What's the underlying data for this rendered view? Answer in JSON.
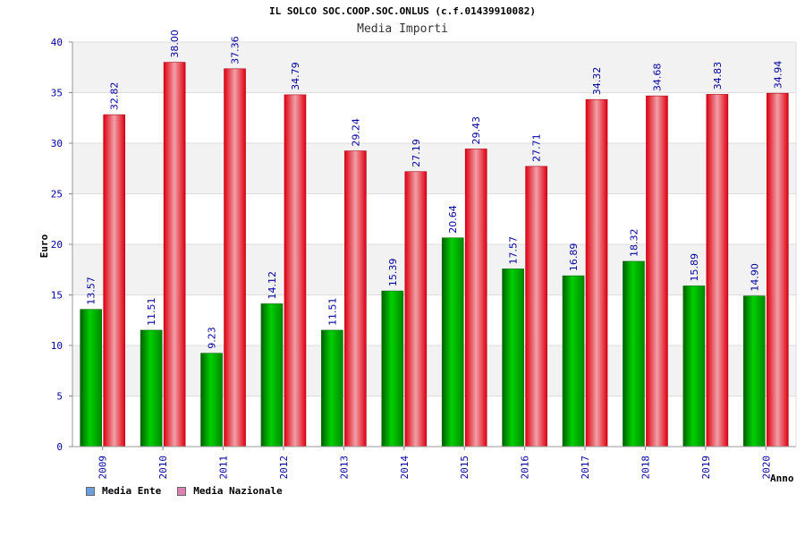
{
  "chart_data": {
    "type": "bar",
    "title": "IL SOLCO SOC.COOP.SOC.ONLUS (c.f.01439910082)",
    "subtitle": "Media Importi",
    "xlabel": "Anno",
    "ylabel": "Euro",
    "ylim": [
      0,
      40
    ],
    "yticks": [
      0,
      5,
      10,
      15,
      20,
      25,
      30,
      35,
      40
    ],
    "categories": [
      "2009",
      "2010",
      "2011",
      "2012",
      "2013",
      "2014",
      "2015",
      "2016",
      "2017",
      "2018",
      "2019",
      "2020"
    ],
    "series": [
      {
        "name": "Media Ente",
        "color": "#00a000",
        "legend_color": "#6aa0e0",
        "values": [
          13.57,
          11.51,
          9.23,
          14.12,
          11.51,
          15.39,
          20.64,
          17.57,
          16.89,
          18.32,
          15.89,
          14.9
        ],
        "labels": [
          "13.57",
          "11.51",
          "9.23",
          "14.12",
          "11.51",
          "15.39",
          "20.64",
          "17.57",
          "16.89",
          "18.32",
          "15.89",
          "14.90"
        ]
      },
      {
        "name": "Media Nazionale",
        "color": "#e00010",
        "legend_color": "#e080b0",
        "values": [
          32.82,
          38.0,
          37.36,
          34.79,
          29.24,
          27.19,
          29.43,
          27.71,
          34.32,
          34.68,
          34.83,
          34.94
        ],
        "labels": [
          "32.82",
          "38.00",
          "37.36",
          "34.79",
          "29.24",
          "27.19",
          "29.43",
          "27.71",
          "34.32",
          "34.68",
          "34.83",
          "34.94"
        ]
      }
    ],
    "grid": true,
    "legend_position": "bottom-left",
    "colors": {
      "axis_text": "#0000a0",
      "band": "#f2f2f2",
      "grid": "#dddddd"
    }
  }
}
